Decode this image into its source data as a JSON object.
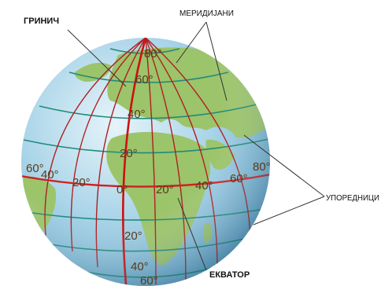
{
  "labels": {
    "greenwich": "ГРИНИЧ",
    "meridians": "МЕРИДИЈАНИ",
    "parallels": "УПОРЕДНИЦИ",
    "equator": "ЕКВАТОР"
  },
  "degrees": {
    "north_80": "80°",
    "north_60": "60°",
    "north_40": "40°",
    "north_20": "20°",
    "west_60": "60°",
    "west_40": "40°",
    "west_20": "20°",
    "zero": "0°",
    "east_20": "20°",
    "east_40": "40°",
    "east_60": "60°",
    "east_80": "80°",
    "south_20": "20°",
    "south_40": "40°",
    "south_60": "60°"
  },
  "colors": {
    "ocean": "#bfe0ee",
    "land": "#9cc46a",
    "meridian": "#b02020",
    "greenwich_meridian": "#cc1111",
    "parallel": "#1f8a7a",
    "equator": "#cc2222"
  }
}
